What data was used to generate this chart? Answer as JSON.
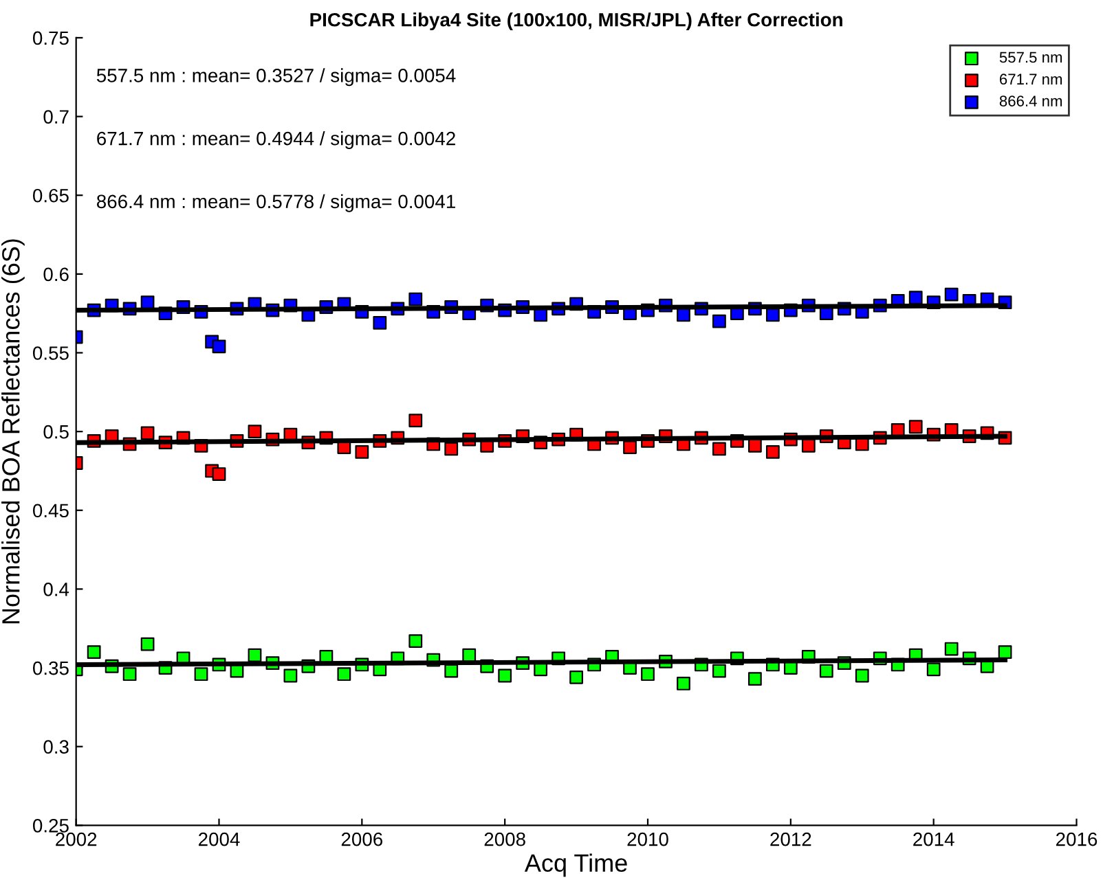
{
  "chart_data": {
    "type": "scatter",
    "title": "PICSCAR Libya4 Site (100x100, MISR/JPL) After Correction",
    "xlabel": "Acq Time",
    "ylabel": "Normalised BOA Reflectances (6S)",
    "xlim": [
      2002,
      2016
    ],
    "xticks": [
      2002,
      2004,
      2006,
      2008,
      2010,
      2012,
      2014,
      2016
    ],
    "ylim": [
      0.25,
      0.75
    ],
    "yticks": [
      0.25,
      0.3,
      0.35,
      0.4,
      0.45,
      0.5,
      0.55,
      0.6,
      0.65,
      0.7,
      0.75
    ],
    "grid": false,
    "legend": "top right",
    "marker": "square",
    "annotations": [
      "557.5 nm : mean= 0.3527 / sigma= 0.0054",
      "671.7 nm : mean= 0.4944 / sigma= 0.0042",
      "866.4 nm : mean= 0.5778 / sigma= 0.0041"
    ],
    "series": [
      {
        "name": "557.5 nm",
        "color": "#00ff00",
        "x": [
          2002.0,
          2002.25,
          2002.5,
          2002.75,
          2003.0,
          2003.25,
          2003.5,
          2003.75,
          2004.0,
          2004.25,
          2004.5,
          2004.75,
          2005.0,
          2005.25,
          2005.5,
          2005.75,
          2006.0,
          2006.25,
          2006.5,
          2006.75,
          2007.0,
          2007.25,
          2007.5,
          2007.75,
          2008.0,
          2008.25,
          2008.5,
          2008.75,
          2009.0,
          2009.25,
          2009.5,
          2009.75,
          2010.0,
          2010.25,
          2010.5,
          2010.75,
          2011.0,
          2011.25,
          2011.5,
          2011.75,
          2012.0,
          2012.25,
          2012.5,
          2012.75,
          2013.0,
          2013.25,
          2013.5,
          2013.75,
          2014.0,
          2014.25,
          2014.5,
          2014.75,
          2015.0
        ],
        "values": [
          0.349,
          0.36,
          0.351,
          0.346,
          0.365,
          0.35,
          0.356,
          0.346,
          0.352,
          0.348,
          0.358,
          0.353,
          0.345,
          0.351,
          0.357,
          0.346,
          0.352,
          0.349,
          0.356,
          0.367,
          0.355,
          0.348,
          0.358,
          0.351,
          0.345,
          0.353,
          0.349,
          0.356,
          0.344,
          0.352,
          0.357,
          0.35,
          0.346,
          0.354,
          0.34,
          0.352,
          0.348,
          0.356,
          0.343,
          0.352,
          0.35,
          0.357,
          0.348,
          0.353,
          0.345,
          0.356,
          0.352,
          0.358,
          0.349,
          0.362,
          0.356,
          0.351,
          0.36
        ]
      },
      {
        "name": "671.7 nm",
        "color": "#ff0000",
        "x": [
          2002.0,
          2002.25,
          2002.5,
          2002.75,
          2003.0,
          2003.25,
          2003.5,
          2003.75,
          2003.9,
          2004.0,
          2004.25,
          2004.5,
          2004.75,
          2005.0,
          2005.25,
          2005.5,
          2005.75,
          2006.0,
          2006.25,
          2006.5,
          2006.75,
          2007.0,
          2007.25,
          2007.5,
          2007.75,
          2008.0,
          2008.25,
          2008.5,
          2008.75,
          2009.0,
          2009.25,
          2009.5,
          2009.75,
          2010.0,
          2010.25,
          2010.5,
          2010.75,
          2011.0,
          2011.25,
          2011.5,
          2011.75,
          2012.0,
          2012.25,
          2012.5,
          2012.75,
          2013.0,
          2013.25,
          2013.5,
          2013.75,
          2014.0,
          2014.25,
          2014.5,
          2014.75,
          2015.0
        ],
        "values": [
          0.48,
          0.494,
          0.497,
          0.492,
          0.499,
          0.493,
          0.496,
          0.491,
          0.475,
          0.473,
          0.494,
          0.5,
          0.495,
          0.498,
          0.493,
          0.496,
          0.49,
          0.487,
          0.494,
          0.496,
          0.507,
          0.492,
          0.489,
          0.495,
          0.491,
          0.494,
          0.497,
          0.493,
          0.495,
          0.498,
          0.492,
          0.496,
          0.49,
          0.494,
          0.497,
          0.492,
          0.496,
          0.489,
          0.494,
          0.491,
          0.487,
          0.495,
          0.491,
          0.497,
          0.493,
          0.492,
          0.496,
          0.501,
          0.503,
          0.498,
          0.501,
          0.497,
          0.499,
          0.496
        ]
      },
      {
        "name": "866.4 nm",
        "color": "#0000ff",
        "x": [
          2002.0,
          2002.25,
          2002.5,
          2002.75,
          2003.0,
          2003.25,
          2003.5,
          2003.75,
          2003.9,
          2004.0,
          2004.25,
          2004.5,
          2004.75,
          2005.0,
          2005.25,
          2005.5,
          2005.75,
          2006.0,
          2006.25,
          2006.5,
          2006.75,
          2007.0,
          2007.25,
          2007.5,
          2007.75,
          2008.0,
          2008.25,
          2008.5,
          2008.75,
          2009.0,
          2009.25,
          2009.5,
          2009.75,
          2010.0,
          2010.25,
          2010.5,
          2010.75,
          2011.0,
          2011.25,
          2011.5,
          2011.75,
          2012.0,
          2012.25,
          2012.5,
          2012.75,
          2013.0,
          2013.25,
          2013.5,
          2013.75,
          2014.0,
          2014.25,
          2014.5,
          2014.75,
          2015.0
        ],
        "values": [
          0.56,
          0.577,
          0.58,
          0.578,
          0.582,
          0.575,
          0.579,
          0.576,
          0.557,
          0.554,
          0.578,
          0.581,
          0.577,
          0.58,
          0.574,
          0.579,
          0.581,
          0.576,
          0.569,
          0.578,
          0.584,
          0.576,
          0.579,
          0.575,
          0.58,
          0.577,
          0.579,
          0.574,
          0.578,
          0.581,
          0.576,
          0.579,
          0.575,
          0.577,
          0.58,
          0.574,
          0.578,
          0.57,
          0.575,
          0.578,
          0.574,
          0.577,
          0.58,
          0.575,
          0.578,
          0.576,
          0.58,
          0.583,
          0.585,
          0.582,
          0.587,
          0.583,
          0.584,
          0.582
        ]
      },
      {
        "type": "line",
        "marker": "none",
        "color": "#000000",
        "x": [
          2002,
          2015
        ],
        "values": [
          0.352,
          0.355
        ]
      },
      {
        "type": "line",
        "marker": "none",
        "color": "#000000",
        "x": [
          2002,
          2015
        ],
        "values": [
          0.493,
          0.497
        ]
      },
      {
        "type": "line",
        "marker": "none",
        "color": "#000000",
        "x": [
          2002,
          2015
        ],
        "values": [
          0.577,
          0.58
        ]
      }
    ]
  }
}
